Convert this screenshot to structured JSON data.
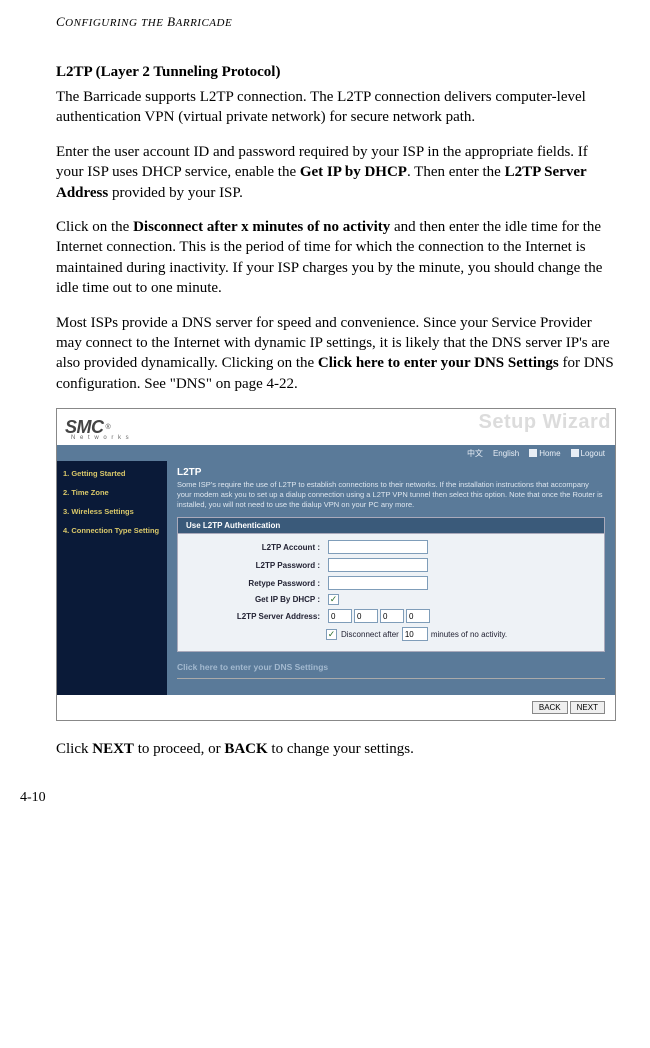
{
  "header": {
    "running": "CONFIGURING THE BARRICADE"
  },
  "section": {
    "title": "L2TP (Layer 2 Tunneling Protocol)",
    "p1": "The Barricade supports L2TP connection. The L2TP connection delivers computer-level authentication VPN (virtual private network) for secure network path.",
    "p2a": "Enter the user account ID and password required by your ISP in the appropriate fields. If your ISP uses DHCP service, enable the ",
    "p2b": "Get IP by DHCP",
    "p2c": ". Then enter the ",
    "p2d": "L2TP Server Address",
    "p2e": " provided by your ISP.",
    "p3a": "Click on the ",
    "p3b": "Disconnect after x minutes of no activity",
    "p3c": " and then enter the idle time for the Internet connection. This is the period of time for which the connection to the Internet is maintained during inactivity. If your ISP charges you by the minute, you should change the idle time out to one minute.",
    "p4a": "Most ISPs provide a DNS server for speed and convenience. Since your Service Provider may connect to the Internet with dynamic IP settings, it is likely that the DNS server IP's are also provided dynamically. Clicking on the ",
    "p4b": "Click here to enter your DNS Settings",
    "p4c": " for DNS configuration. See \"DNS\" on page 4-22.",
    "p5a": "Click ",
    "p5b": "NEXT",
    "p5c": " to proceed, or ",
    "p5d": "BACK",
    "p5e": " to change your settings."
  },
  "screenshot": {
    "logo": {
      "brand": "SMC",
      "sub": "N e t w o r k s"
    },
    "bgtitle": "Setup Wizard",
    "bluebar": {
      "lang1": "中文",
      "lang2": "English",
      "home": "Home",
      "logout": "Logout"
    },
    "sidebar": {
      "i1": "1. Getting Started",
      "i2": "2. Time Zone",
      "i3": "3. Wireless Settings",
      "i4": "4. Connection Type Setting"
    },
    "main": {
      "title": "L2TP",
      "desc": "Some ISP's require the use of L2TP to establish connections to their networks. If the installation instructions that accompany your modem ask you to set up a dialup connection using a L2TP VPN tunnel then select this option. Note that once the Router is installed, you will not need to use the dialup VPN on your PC any more.",
      "formHeader": "Use L2TP Authentication",
      "labels": {
        "account": "L2TP Account :",
        "password": "L2TP Password :",
        "retype": "Retype Password :",
        "dhcp": "Get IP By DHCP :",
        "server": "L2TP Server Address:"
      },
      "ip": {
        "a": "0",
        "b": "0",
        "c": "0",
        "d": "0"
      },
      "disconnect": {
        "pre": "Disconnect after",
        "val": "10",
        "post": "minutes of no activity."
      },
      "dnslink": "Click here to enter your DNS Settings"
    },
    "footer": {
      "back": "BACK",
      "next": "NEXT"
    }
  },
  "pagenum": "4-10"
}
